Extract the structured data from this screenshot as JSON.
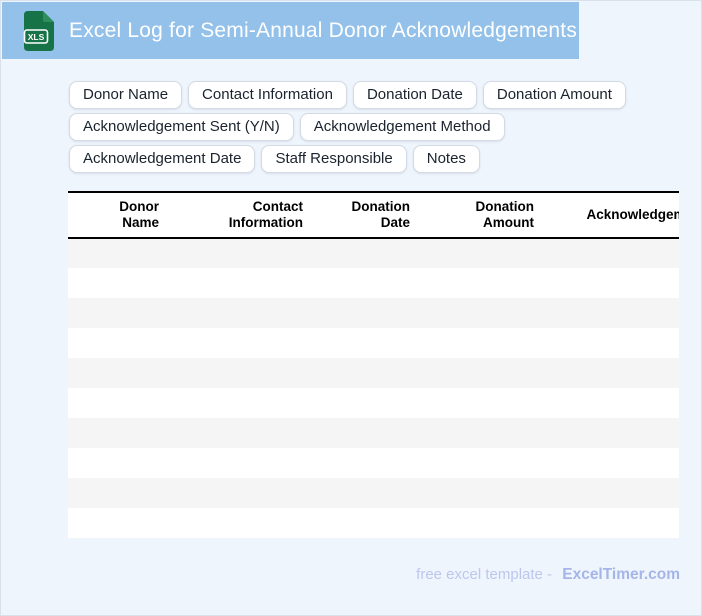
{
  "titlebar": {
    "title": "Excel Log for Semi-Annual Donor Acknowledgements",
    "file_icon_label": "XLS"
  },
  "chips": {
    "items": [
      "Donor Name",
      "Contact Information",
      "Donation Date",
      "Donation Amount",
      "Acknowledgement Sent (Y/N)",
      "Acknowledgement Method",
      "Acknowledgement Date",
      "Staff Responsible",
      "Notes"
    ]
  },
  "table": {
    "columns": [
      [
        "Donor",
        "Name"
      ],
      [
        "Contact",
        "Information"
      ],
      [
        "Donation",
        "Date"
      ],
      [
        "Donation",
        "Amount"
      ],
      [
        "Acknowledgement Sent (Y/N)"
      ]
    ],
    "row_count": 10
  },
  "footer": {
    "text": "free excel template -",
    "brand": "ExcelTimer.com"
  },
  "colors": {
    "titlebar": "#93c1ea",
    "page_bg": "#eff5fd",
    "stripe": "#f5f5f5",
    "footer_text": "#bcc7ee",
    "footer_brand": "#a6b5e8",
    "icon_green": "#157347",
    "icon_fold": "#2e8f5c",
    "header_border": "#000000"
  }
}
